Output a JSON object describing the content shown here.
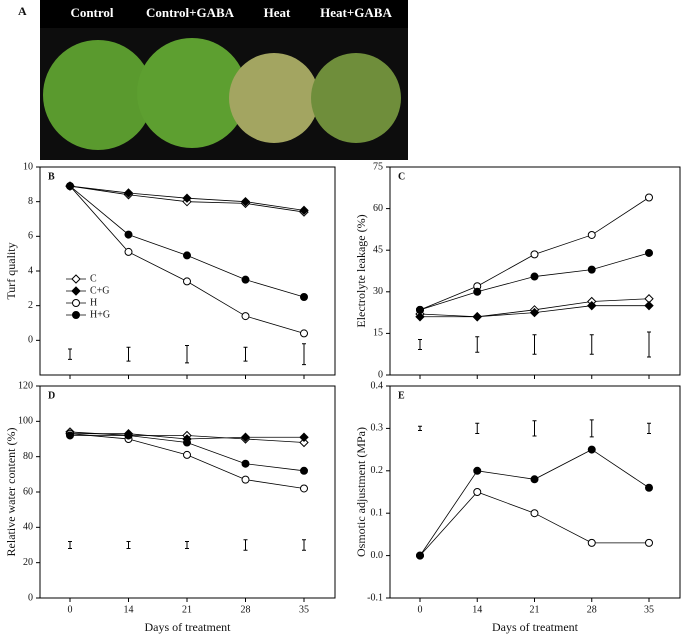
{
  "panel_a": {
    "label": "A",
    "labels": [
      "Control",
      "Control+GABA",
      "Heat",
      "Heat+GABA"
    ]
  },
  "chart_data": [
    {
      "type": "line",
      "panel": "B",
      "ylabel": "Turf quality",
      "ylim": [
        -2,
        10
      ],
      "yticks": [
        0,
        2,
        4,
        6,
        8,
        10
      ],
      "legend": "left",
      "series": [
        {
          "name": "C",
          "color": "#000",
          "marker": "diamond",
          "marker_fill": "#fff",
          "values": [
            8.9,
            8.4,
            8.0,
            7.9,
            7.4
          ]
        },
        {
          "name": "C+G",
          "color": "#000",
          "marker": "diamond",
          "marker_fill": "#000",
          "values": [
            8.9,
            8.5,
            8.2,
            8.0,
            7.5
          ]
        },
        {
          "name": "H",
          "color": "#000",
          "marker": "circle",
          "marker_fill": "#fff",
          "values": [
            8.9,
            5.1,
            3.4,
            1.4,
            0.4
          ]
        },
        {
          "name": "H+G",
          "color": "#000",
          "marker": "circle",
          "marker_fill": "#000",
          "values": [
            8.9,
            6.1,
            4.9,
            3.5,
            2.5
          ]
        }
      ],
      "lsd": {
        "values": [
          -0.8,
          -0.8,
          -0.8,
          -0.8,
          -0.8
        ],
        "errors": [
          0.3,
          0.4,
          0.5,
          0.4,
          0.6
        ]
      }
    },
    {
      "type": "line",
      "panel": "C",
      "ylabel": "Electrolyte leakage (%)",
      "ylim": [
        0,
        75
      ],
      "yticks": [
        0,
        15,
        30,
        45,
        60,
        75
      ],
      "series": [
        {
          "color": "#000",
          "marker": "diamond",
          "marker_fill": "#fff",
          "values": [
            22,
            21,
            23.5,
            26.5,
            27.5
          ]
        },
        {
          "color": "#000",
          "marker": "diamond",
          "marker_fill": "#000",
          "values": [
            21,
            21,
            22.5,
            25,
            25
          ]
        },
        {
          "color": "#000",
          "marker": "circle",
          "marker_fill": "#fff",
          "values": [
            23.5,
            32,
            43.5,
            50.5,
            64
          ]
        },
        {
          "color": "#000",
          "marker": "circle",
          "marker_fill": "#000",
          "values": [
            23.5,
            30,
            35.5,
            38,
            44
          ]
        }
      ],
      "lsd": {
        "values": [
          11,
          11,
          11,
          11,
          11
        ],
        "errors": [
          1.8,
          2.8,
          3.5,
          3.5,
          4.5
        ]
      }
    },
    {
      "type": "line",
      "panel": "D",
      "ylabel": "Relative water content (%)",
      "xlabel": "Days of treatment",
      "categories": [
        "0",
        "14",
        "21",
        "28",
        "35"
      ],
      "ylim": [
        0,
        120
      ],
      "yticks": [
        0,
        20,
        40,
        60,
        80,
        100,
        120
      ],
      "series": [
        {
          "color": "#000",
          "marker": "diamond",
          "marker_fill": "#fff",
          "values": [
            94,
            92,
            92,
            90,
            88
          ]
        },
        {
          "color": "#000",
          "marker": "diamond",
          "marker_fill": "#000",
          "values": [
            93,
            93,
            90,
            91,
            91
          ]
        },
        {
          "color": "#000",
          "marker": "circle",
          "marker_fill": "#fff",
          "values": [
            93,
            90,
            81,
            67,
            62
          ]
        },
        {
          "color": "#000",
          "marker": "circle",
          "marker_fill": "#000",
          "values": [
            92,
            92,
            88,
            76,
            72
          ]
        }
      ],
      "lsd": {
        "values": [
          30,
          30,
          30,
          30,
          30
        ],
        "errors": [
          2,
          2,
          2,
          3,
          3
        ]
      }
    },
    {
      "type": "line",
      "panel": "E",
      "ylabel": "Osmotic adjustment (MPa)",
      "xlabel": "Days of treatment",
      "categories": [
        "0",
        "14",
        "21",
        "28",
        "35"
      ],
      "ylim": [
        -0.1,
        0.4
      ],
      "yticks": [
        -0.1,
        {
          "value": 0,
          "label": "0.0"
        },
        0.1,
        0.2,
        0.3,
        0.4
      ],
      "series": [
        {
          "color": "#000",
          "marker": "circle",
          "marker_fill": "#fff",
          "values": [
            0,
            0.15,
            0.1,
            0.03,
            0.03
          ]
        },
        {
          "color": "#000",
          "marker": "circle",
          "marker_fill": "#000",
          "values": [
            0,
            0.2,
            0.18,
            0.25,
            0.16
          ]
        }
      ],
      "lsd": {
        "values": [
          0.3,
          0.3,
          0.3,
          0.3,
          0.3
        ],
        "errors": [
          0.005,
          0.012,
          0.018,
          0.02,
          0.012
        ]
      }
    }
  ]
}
